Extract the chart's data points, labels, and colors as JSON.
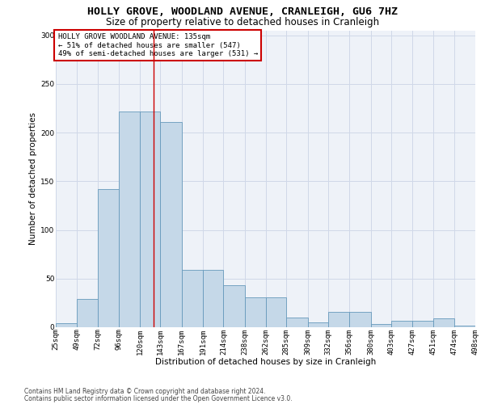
{
  "title1": "HOLLY GROVE, WOODLAND AVENUE, CRANLEIGH, GU6 7HZ",
  "title2": "Size of property relative to detached houses in Cranleigh",
  "xlabel": "Distribution of detached houses by size in Cranleigh",
  "ylabel": "Number of detached properties",
  "footnote1": "Contains HM Land Registry data © Crown copyright and database right 2024.",
  "footnote2": "Contains public sector information licensed under the Open Government Licence v3.0.",
  "annotation_line1": "HOLLY GROVE WOODLAND AVENUE: 135sqm",
  "annotation_line2": "← 51% of detached houses are smaller (547)",
  "annotation_line3": "49% of semi-detached houses are larger (531) →",
  "bar_left_edges": [
    25,
    49,
    72,
    96,
    120,
    143,
    167,
    191,
    214,
    238,
    262,
    285,
    309,
    332,
    356,
    380,
    403,
    427,
    451,
    474
  ],
  "bar_widths": [
    24,
    23,
    24,
    24,
    23,
    24,
    24,
    23,
    24,
    24,
    23,
    24,
    23,
    24,
    24,
    23,
    24,
    24,
    23,
    24
  ],
  "bar_heights": [
    4,
    29,
    142,
    222,
    222,
    211,
    59,
    59,
    43,
    31,
    31,
    10,
    5,
    16,
    16,
    3,
    7,
    7,
    9,
    2
  ],
  "bar_color": "#c5d8e8",
  "bar_edge_color": "#6699bb",
  "vline_color": "#cc0000",
  "vline_x": 135,
  "ylim": [
    0,
    305
  ],
  "yticks": [
    0,
    50,
    100,
    150,
    200,
    250,
    300
  ],
  "xtick_labels": [
    "25sqm",
    "49sqm",
    "72sqm",
    "96sqm",
    "120sqm",
    "143sqm",
    "167sqm",
    "191sqm",
    "214sqm",
    "238sqm",
    "262sqm",
    "285sqm",
    "309sqm",
    "332sqm",
    "356sqm",
    "380sqm",
    "403sqm",
    "427sqm",
    "451sqm",
    "474sqm",
    "498sqm"
  ],
  "grid_color": "#d0d8e8",
  "bg_color": "#eef2f8",
  "annotation_box_color": "#cc0000",
  "title1_fontsize": 9.5,
  "title2_fontsize": 8.5,
  "axis_label_fontsize": 7.5,
  "tick_fontsize": 6.5,
  "annotation_fontsize": 6.5,
  "footnote_fontsize": 5.5
}
